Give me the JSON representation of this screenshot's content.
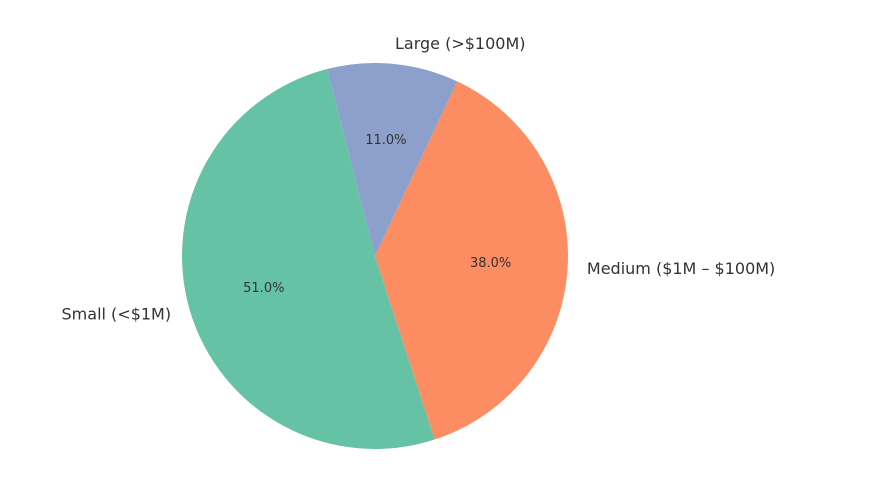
{
  "chart_data": {
    "type": "pie",
    "title": "",
    "categories": [
      "Small (<$1M)",
      "Medium ($1M – $100M)",
      "Large (>$100M)"
    ],
    "values": [
      51.0,
      38.0,
      11.0
    ],
    "value_labels": [
      "51.0%",
      "38.0%",
      "11.0%"
    ],
    "colors": [
      "#66c2a5",
      "#fc8d62",
      "#8da0cb"
    ],
    "legend": "none"
  }
}
